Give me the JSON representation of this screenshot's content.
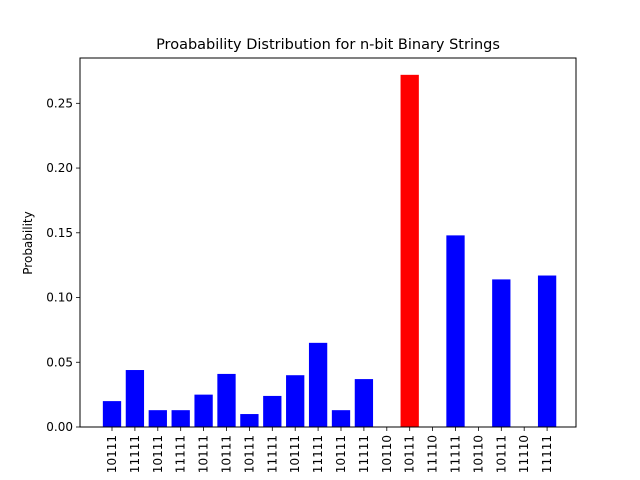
{
  "chart_data": {
    "type": "bar",
    "title": "Proabability Distribution for n-bit Binary Strings",
    "xlabel": "",
    "ylabel": "Probability",
    "ylim": [
      0,
      0.285
    ],
    "yticks": [
      "0.00",
      "0.05",
      "0.10",
      "0.15",
      "0.20",
      "0.25"
    ],
    "grid": false,
    "categories": [
      "10111",
      "11111",
      "10111",
      "11111",
      "10111",
      "10111",
      "10111",
      "11111",
      "10111",
      "11111",
      "10111",
      "11111",
      "10110",
      "10111",
      "11110",
      "11111",
      "10110",
      "10111",
      "11110",
      "11111"
    ],
    "values": [
      0.02,
      0.044,
      0.013,
      0.013,
      0.025,
      0.041,
      0.01,
      0.024,
      0.04,
      0.065,
      0.013,
      0.037,
      0.0,
      0.272,
      0.0,
      0.148,
      0.0,
      0.114,
      0.0,
      0.117
    ],
    "colors": [
      "#0000ff",
      "#0000ff",
      "#0000ff",
      "#0000ff",
      "#0000ff",
      "#0000ff",
      "#0000ff",
      "#0000ff",
      "#0000ff",
      "#0000ff",
      "#0000ff",
      "#0000ff",
      "#0000ff",
      "#ff0000",
      "#0000ff",
      "#0000ff",
      "#0000ff",
      "#0000ff",
      "#0000ff",
      "#0000ff"
    ]
  }
}
